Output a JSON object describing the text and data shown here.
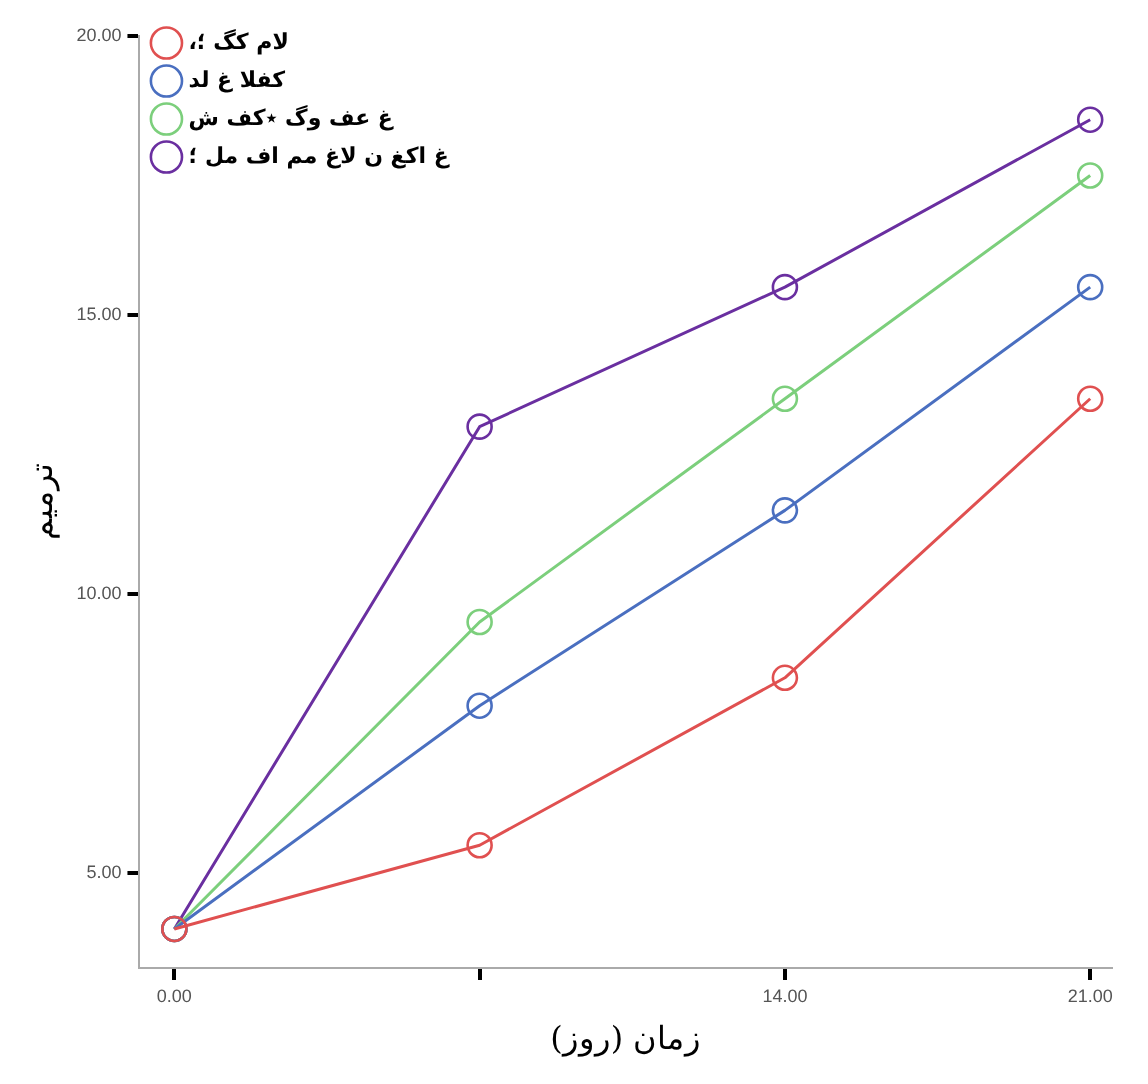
{
  "chart_data": {
    "type": "line",
    "xlabel": "زمان (روز)",
    "ylabel": "ترمیم",
    "x": [
      0,
      7,
      14,
      21
    ],
    "series": [
      {
        "name": "،لام کگ ؛",
        "color": "#e05050",
        "values": [
          4,
          5.5,
          8.5,
          13.5
        ]
      },
      {
        "name": "کفلا غ لد",
        "color": "#4a6fc0",
        "values": [
          4,
          8,
          11.5,
          15.5
        ]
      },
      {
        "name": "غ عف وگ ٭کف ش",
        "color": "#7ccf7c",
        "values": [
          4,
          9.5,
          13.5,
          17.5
        ]
      },
      {
        "name": "غ اکغ ن لاغ مم اف مل ؛",
        "color": "#6a2fa0",
        "values": [
          4,
          13,
          15.5,
          18.5
        ]
      }
    ],
    "xlim": [
      -0.8,
      21.5
    ],
    "xticks": [
      {
        "value": 0,
        "label": "0.00"
      },
      {
        "value": 7,
        "label": null
      },
      {
        "value": 14,
        "label": "14.00"
      },
      {
        "value": 21,
        "label": "21.00"
      }
    ],
    "ylim": [
      3.3,
      20
    ],
    "yticks": [
      {
        "value": 5,
        "label": "5.00"
      },
      {
        "value": 10,
        "label": "10.00"
      },
      {
        "value": 15,
        "label": "15.00"
      },
      {
        "value": 20,
        "label": "20.00"
      }
    ],
    "grid": false,
    "legend": "top left",
    "marker": "circle",
    "line_style": "solid"
  }
}
